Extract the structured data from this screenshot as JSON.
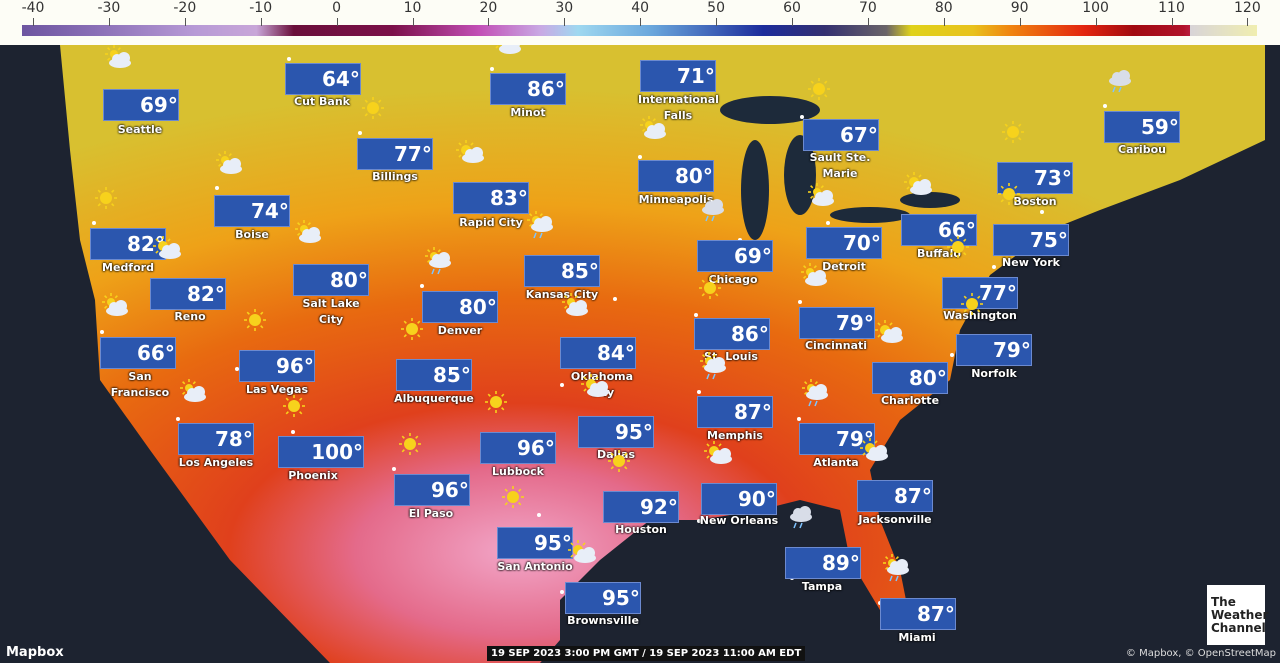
{
  "legend": {
    "ticks": [
      "-40",
      "-30",
      "-20",
      "-10",
      "0",
      "10",
      "20",
      "30",
      "40",
      "50",
      "60",
      "70",
      "80",
      "90",
      "100",
      "110",
      "120"
    ]
  },
  "timestamp": "19 SEP 2023 3:00 PM GMT / 19 SEP 2023 11:00 AM EDT",
  "mapbox_logo": "Mapbox",
  "attribution": "© Mapbox, © OpenStreetMap",
  "brand_logo": "The Weather Channel",
  "colors": {
    "badge": "#2b56ae",
    "sun": "#f7d21c",
    "cloud": "#ffffff",
    "ocean": "#1d2330"
  },
  "stations": [
    {
      "name": "Seattle",
      "temp": "69°",
      "condition": "mostly-cloudy"
    },
    {
      "name": "Cut Bank",
      "temp": "64°",
      "condition": "mostly-cloudy"
    },
    {
      "name": "Minot",
      "temp": "86°",
      "condition": "partly-cloudy"
    },
    {
      "name": "International Falls",
      "temp": "71°",
      "condition": "showers"
    },
    {
      "name": "Caribou",
      "temp": "59°",
      "condition": "showers"
    },
    {
      "name": "Sault Ste. Marie",
      "temp": "67°",
      "condition": "sunny"
    },
    {
      "name": "Billings",
      "temp": "77°",
      "condition": "sunny"
    },
    {
      "name": "Minneapolis",
      "temp": "80°",
      "condition": "mostly-cloudy"
    },
    {
      "name": "Boston",
      "temp": "73°",
      "condition": "sunny"
    },
    {
      "name": "Rapid City",
      "temp": "83°",
      "condition": "partly-cloudy"
    },
    {
      "name": "Boise",
      "temp": "74°",
      "condition": "mostly-cloudy"
    },
    {
      "name": "Medford",
      "temp": "82°",
      "condition": "sunny"
    },
    {
      "name": "Buffalo",
      "temp": "66°",
      "condition": "partly-cloudy"
    },
    {
      "name": "Detroit",
      "temp": "70°",
      "condition": "mostly-cloudy"
    },
    {
      "name": "New York",
      "temp": "75°",
      "condition": "sunny"
    },
    {
      "name": "Chicago",
      "temp": "69°",
      "condition": "showers"
    },
    {
      "name": "Kansas City",
      "temp": "85°",
      "condition": "scattered-showers"
    },
    {
      "name": "Salt Lake City",
      "temp": "80°",
      "condition": "mostly-cloudy"
    },
    {
      "name": "Reno",
      "temp": "82°",
      "condition": "partly-cloudy"
    },
    {
      "name": "Denver",
      "temp": "80°",
      "condition": "scattered-showers"
    },
    {
      "name": "Washington",
      "temp": "77°",
      "condition": "sunny"
    },
    {
      "name": "Cincinnati",
      "temp": "79°",
      "condition": "mostly-cloudy"
    },
    {
      "name": "St. Louis",
      "temp": "86°",
      "condition": "sunny"
    },
    {
      "name": "San Francisco",
      "temp": "66°",
      "condition": "mostly-cloudy"
    },
    {
      "name": "Norfolk",
      "temp": "79°",
      "condition": "sunny"
    },
    {
      "name": "Oklahoma City",
      "temp": "84°",
      "condition": "mostly-cloudy"
    },
    {
      "name": "Las Vegas",
      "temp": "96°",
      "condition": "sunny"
    },
    {
      "name": "Albuquerque",
      "temp": "85°",
      "condition": "sunny"
    },
    {
      "name": "Charlotte",
      "temp": "80°",
      "condition": "partly-cloudy"
    },
    {
      "name": "Memphis",
      "temp": "87°",
      "condition": "scattered-showers"
    },
    {
      "name": "Dallas",
      "temp": "95°",
      "condition": "partly-cloudy"
    },
    {
      "name": "Atlanta",
      "temp": "79°",
      "condition": "scattered-showers"
    },
    {
      "name": "Los Angeles",
      "temp": "78°",
      "condition": "mostly-cloudy"
    },
    {
      "name": "Phoenix",
      "temp": "100°",
      "condition": "sunny"
    },
    {
      "name": "Lubbock",
      "temp": "96°",
      "condition": "sunny"
    },
    {
      "name": "El Paso",
      "temp": "96°",
      "condition": "sunny"
    },
    {
      "name": "Jacksonville",
      "temp": "87°",
      "condition": "partly-cloudy"
    },
    {
      "name": "Houston",
      "temp": "92°",
      "condition": "sunny"
    },
    {
      "name": "New Orleans",
      "temp": "90°",
      "condition": "partly-cloudy"
    },
    {
      "name": "San Antonio",
      "temp": "95°",
      "condition": "sunny"
    },
    {
      "name": "Tampa",
      "temp": "89°",
      "condition": "showers"
    },
    {
      "name": "Brownsville",
      "temp": "95°",
      "condition": "partly-cloudy"
    },
    {
      "name": "Miami",
      "temp": "87°",
      "condition": "scattered-showers"
    }
  ]
}
